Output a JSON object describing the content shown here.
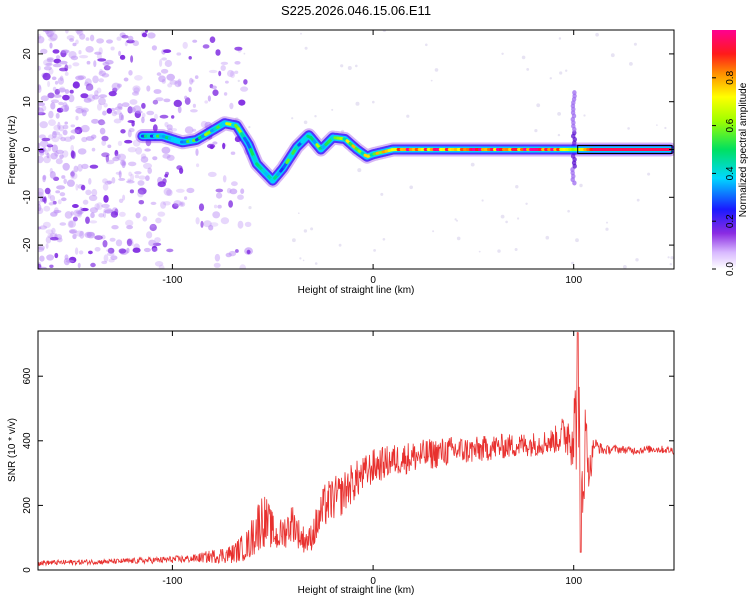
{
  "title": "S225.2026.046.15.06.E11",
  "colors": {
    "spectrogram_sparse": "#8a2be2",
    "snr_line": "#e8302e",
    "background": "#ffffff",
    "axes": "#000000"
  },
  "chart_data": [
    {
      "type": "heatmap",
      "name": "spectrogram",
      "xlabel": "Height of straight line (km)",
      "ylabel": "Frequency (Hz)",
      "xlim": [
        -167,
        150
      ],
      "ylim": [
        -25,
        25
      ],
      "xticks": [
        -100,
        0,
        100
      ],
      "yticks": [
        -20,
        -10,
        0,
        10,
        20
      ],
      "grid": false,
      "colorbar": {
        "label": "Normalized spectral amplitude",
        "range": [
          0,
          1
        ],
        "ticks": [
          0.0,
          0.2,
          0.4,
          0.6,
          0.8
        ],
        "colormap": "rainbow (white, violet, blue, cyan, green, yellow, orange, red, magenta)"
      },
      "track": {
        "description": "dominant frequency ridge vs height",
        "x": [
          -115,
          -105,
          -95,
          -88,
          -80,
          -74,
          -68,
          -62,
          -58,
          -50,
          -45,
          -38,
          -32,
          -26,
          -20,
          -14,
          -8,
          -3,
          0,
          10,
          30,
          50,
          70,
          90,
          100,
          110,
          130,
          148
        ],
        "y": [
          2.8,
          2.8,
          1.5,
          2.0,
          4.0,
          5.5,
          5.0,
          1.0,
          -3.0,
          -6.5,
          -4.0,
          0.5,
          3.0,
          0.0,
          2.5,
          2.2,
          0.0,
          -1.5,
          -1.0,
          0.0,
          0.0,
          0.0,
          0.0,
          0.0,
          0.0,
          0.0,
          0.0,
          0.0
        ],
        "amplitude": [
          0.3,
          0.35,
          0.3,
          0.35,
          0.45,
          0.45,
          0.4,
          0.35,
          0.35,
          0.35,
          0.35,
          0.35,
          0.4,
          0.45,
          0.5,
          0.55,
          0.55,
          0.5,
          0.55,
          0.75,
          0.8,
          0.8,
          0.85,
          0.85,
          0.6,
          0.95,
          0.95,
          0.95
        ]
      },
      "noise_region_x": [
        -167,
        -70
      ],
      "spike_x": 100
    },
    {
      "type": "line",
      "name": "snr",
      "xlabel": "Height of straight line (km)",
      "ylabel": "SNR (10 * v/v)",
      "xlim": [
        -167,
        150
      ],
      "ylim": [
        0,
        740
      ],
      "xticks": [
        -100,
        0,
        100
      ],
      "yticks": [
        0,
        200,
        400,
        600
      ],
      "grid": false,
      "series": [
        {
          "name": "SNR",
          "x": [
            -167,
            -150,
            -130,
            -110,
            -90,
            -70,
            -62,
            -58,
            -55,
            -52,
            -48,
            -44,
            -40,
            -36,
            -32,
            -28,
            -24,
            -20,
            -16,
            -12,
            -8,
            -4,
            0,
            10,
            20,
            30,
            40,
            50,
            60,
            70,
            80,
            90,
            95,
            100,
            102,
            104,
            106,
            108,
            110,
            115,
            120,
            130,
            140,
            150
          ],
          "y": [
            22,
            24,
            26,
            30,
            35,
            50,
            80,
            130,
            160,
            140,
            100,
            120,
            150,
            100,
            90,
            140,
            200,
            220,
            230,
            260,
            280,
            300,
            320,
            340,
            350,
            360,
            370,
            370,
            380,
            385,
            390,
            400,
            420,
            430,
            500,
            250,
            420,
            300,
            390,
            370,
            375,
            370,
            375,
            370
          ],
          "noise": [
            8,
            8,
            8,
            10,
            12,
            30,
            50,
            80,
            90,
            70,
            45,
            55,
            60,
            45,
            40,
            60,
            70,
            70,
            65,
            65,
            60,
            55,
            55,
            50,
            50,
            48,
            45,
            42,
            40,
            38,
            38,
            40,
            60,
            120,
            220,
            200,
            110,
            60,
            25,
            15,
            12,
            12,
            12,
            12
          ]
        }
      ]
    }
  ]
}
